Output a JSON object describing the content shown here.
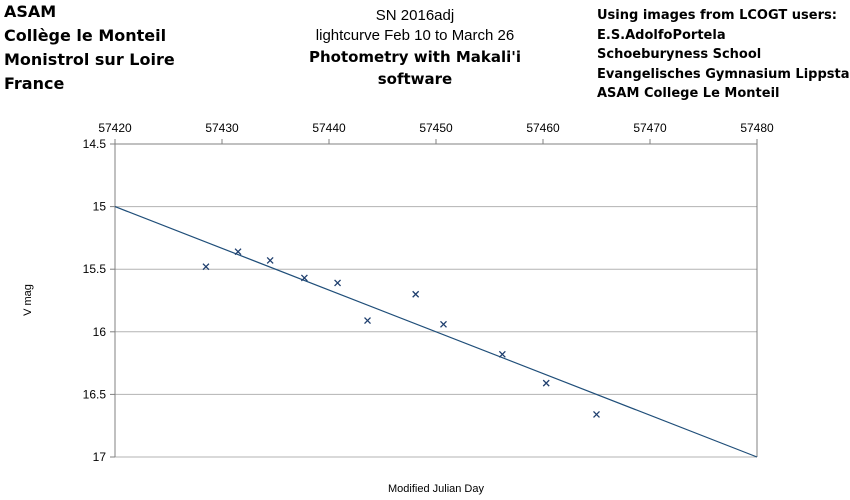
{
  "header": {
    "left_lines": [
      "ASAM",
      "Collège le Monteil",
      "Monistrol sur Loire",
      "France"
    ],
    "center_lines": [
      "SN 2016adj",
      "lightcurve Feb 10 to March 26",
      "Photometry with Makali'i software"
    ],
    "right_lines": [
      "Using images from LCOGT users:",
      "E.S.AdolfoPortela",
      "Schoeburyness School",
      "Evangelisches Gymnasium Lippstadt",
      "ASAM College Le Monteil"
    ]
  },
  "chart_data": {
    "type": "scatter",
    "title": "SN 2016adj",
    "xlabel": "Modified Julian Day",
    "ylabel": "V mag",
    "xlim": [
      57420,
      57480
    ],
    "ylim": [
      14.5,
      17
    ],
    "y_inverted": true,
    "x_tick_position": "top",
    "x_ticks": [
      57420,
      57430,
      57440,
      57450,
      57460,
      57470,
      57480
    ],
    "y_ticks": [
      "14.5",
      "15",
      "15.5",
      "16",
      "16.5",
      "17"
    ],
    "grid": "horizontal",
    "series": [
      {
        "marker": "x",
        "x": [
          57428.5,
          57431.5,
          57434.5,
          57437.7,
          57440.8,
          57443.6,
          57448.1,
          57450.7,
          57456.2,
          57460.3,
          57465.0
        ],
        "y": [
          15.48,
          15.36,
          15.43,
          15.57,
          15.61,
          15.91,
          15.7,
          15.94,
          16.18,
          16.41,
          16.66
        ]
      }
    ],
    "trendline": {
      "x": [
        57420,
        57480
      ],
      "y": [
        15.0,
        17.0
      ]
    },
    "colors": {
      "marker": "#1f3f6e",
      "trendline": "#1f4e79",
      "grid": "#b3b3b3",
      "axis": "#808080"
    }
  }
}
